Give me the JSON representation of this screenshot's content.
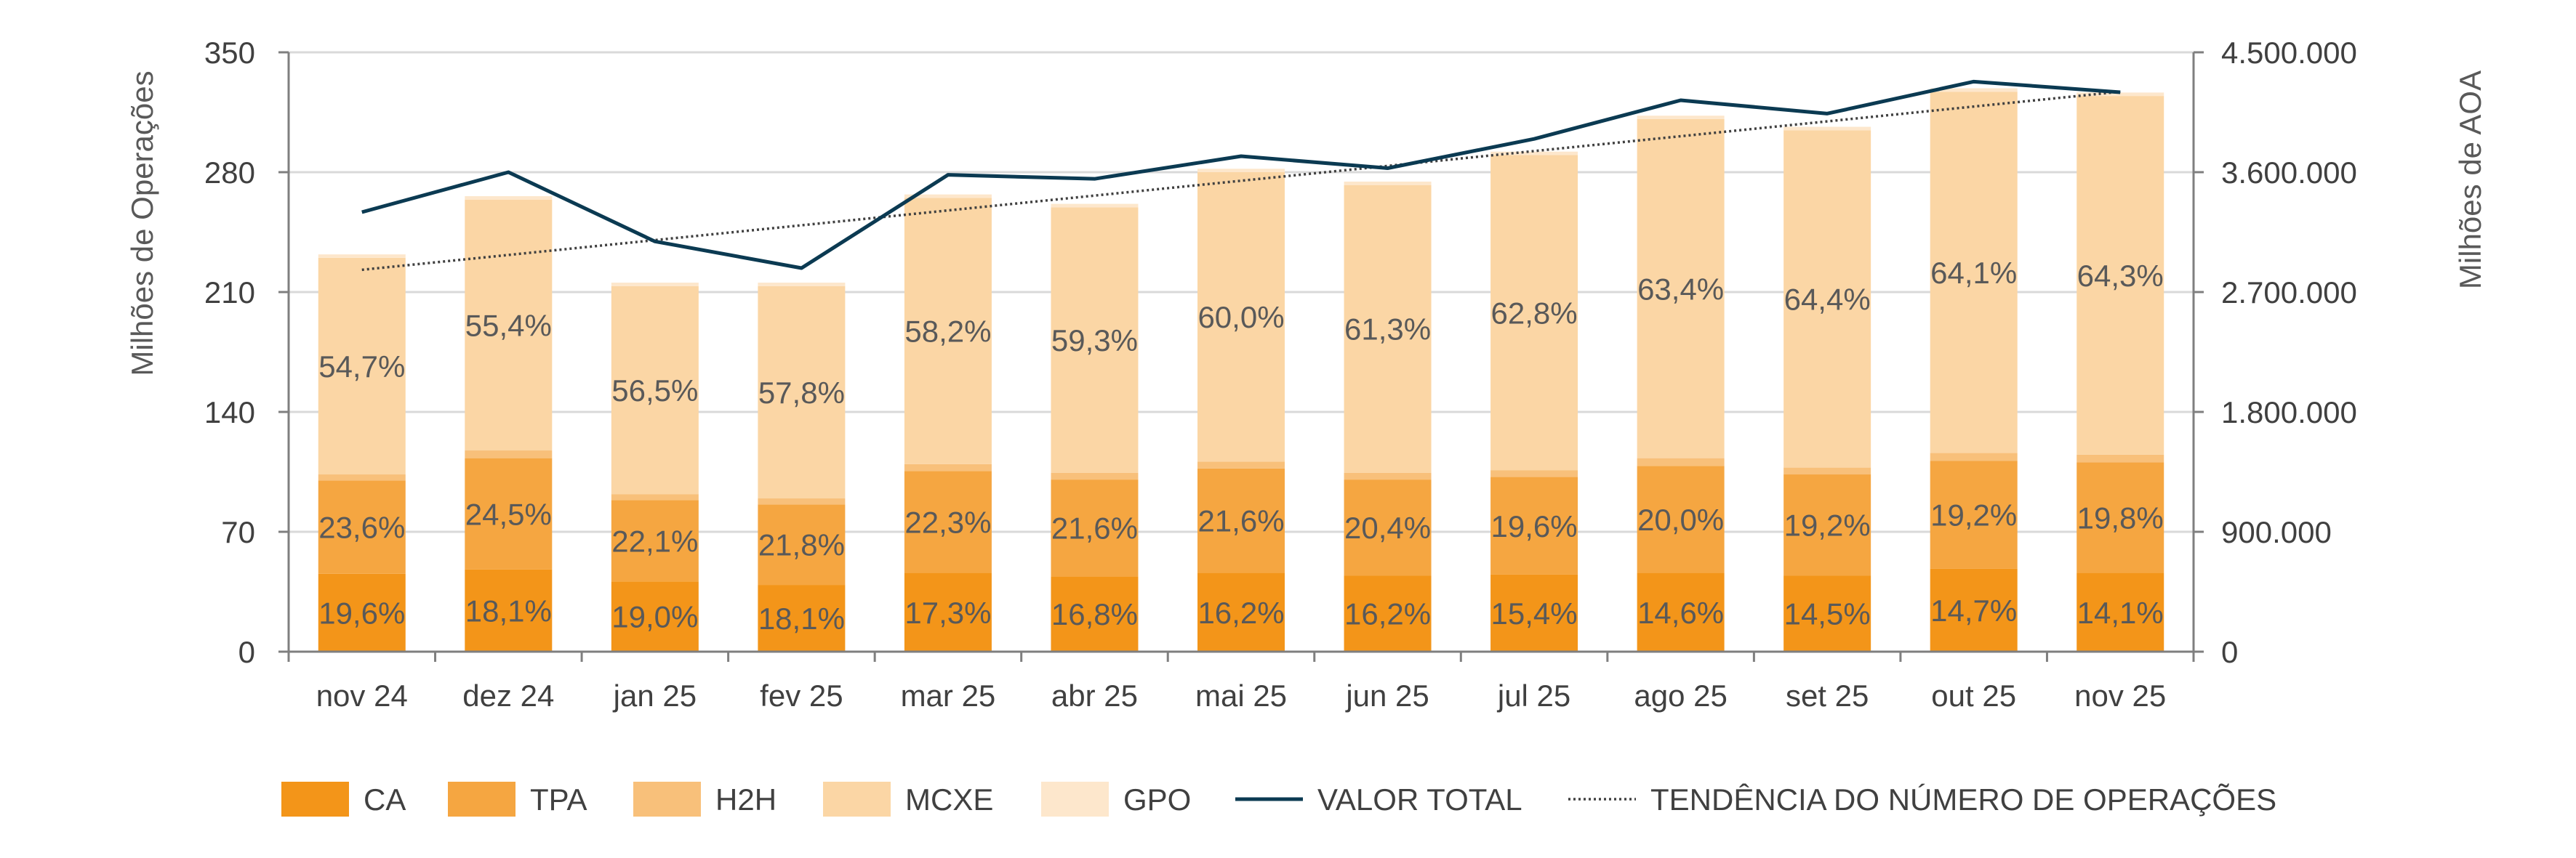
{
  "chart_data": {
    "type": "bar",
    "stacked": true,
    "categories": [
      "nov 24",
      "dez 24",
      "jan 25",
      "fev 25",
      "mar 25",
      "abr 25",
      "mai 25",
      "jun 25",
      "jul 25",
      "ago 25",
      "set 25",
      "out 25",
      "nov 25"
    ],
    "ylabel": "Milhões de Operações",
    "y2label": "Milhões de AOA",
    "ylim": [
      0,
      350
    ],
    "y2lim": [
      0,
      4500000
    ],
    "yticks": [
      "0",
      "70",
      "140",
      "210",
      "280",
      "350"
    ],
    "y2ticks": [
      "0",
      "900.000",
      "1.800.000",
      "2.700.000",
      "3.600.000",
      "4.500.000"
    ],
    "grid": true,
    "series": [
      {
        "name": "CA",
        "color": "#F39519",
        "values": [
          45.5,
          48.0,
          41.0,
          39.0,
          46.0,
          44.0,
          46.0,
          44.5,
          45.0,
          46.0,
          44.5,
          48.5,
          46.0
        ],
        "labels": [
          "19,6%",
          "18,1%",
          "19,0%",
          "18,1%",
          "17,3%",
          "16,8%",
          "16,2%",
          "16,2%",
          "15,4%",
          "14,6%",
          "14,5%",
          "14,7%",
          "14,1%"
        ]
      },
      {
        "name": "TPA",
        "color": "#F5A641",
        "values": [
          54.5,
          65.0,
          47.5,
          47.0,
          59.5,
          56.5,
          61.0,
          56.0,
          57.0,
          62.5,
          59.0,
          63.0,
          64.5
        ],
        "labels": [
          "23,6%",
          "24,5%",
          "22,1%",
          "21,8%",
          "22,3%",
          "21,6%",
          "21,6%",
          "20,4%",
          "19,6%",
          "20,0%",
          "19,2%",
          "19,2%",
          "19,8%"
        ]
      },
      {
        "name": "H2H",
        "color": "#F8C07A",
        "values": [
          3.5,
          4.5,
          3.5,
          3.5,
          4.0,
          4.0,
          4.0,
          4.0,
          4.0,
          4.5,
          4.0,
          4.5,
          4.5
        ],
        "labels": []
      },
      {
        "name": "MCXE",
        "color": "#FBD6A5",
        "values": [
          126.5,
          146.5,
          121.5,
          124.0,
          155.5,
          155.0,
          169.0,
          168.0,
          184.0,
          198.0,
          197.0,
          211.0,
          209.5
        ],
        "labels": [
          "54,7%",
          "55,4%",
          "56,5%",
          "57,8%",
          "58,2%",
          "59,3%",
          "60,0%",
          "61,3%",
          "62,8%",
          "63,4%",
          "64,4%",
          "64,1%",
          "64,3%"
        ]
      },
      {
        "name": "GPO",
        "color": "#FDE7CC",
        "values": [
          2.0,
          2.0,
          2.0,
          2.0,
          2.0,
          2.0,
          2.0,
          2.0,
          2.0,
          2.0,
          2.0,
          2.0,
          2.0
        ],
        "labels": []
      }
    ],
    "line_series": {
      "name": "VALOR TOTAL",
      "axis": "right",
      "color": "#0B3A52",
      "values": [
        3300000,
        3600000,
        3080000,
        2880000,
        3580000,
        3550000,
        3720000,
        3630000,
        3850000,
        4140000,
        4040000,
        4280000,
        4200000
      ]
    },
    "trend_series": {
      "name": "TENDÊNCIA DO NÚMERO DE OPERAÇÕES",
      "axis": "left",
      "color": "#404040",
      "values": [
        223,
        327
      ]
    }
  }
}
